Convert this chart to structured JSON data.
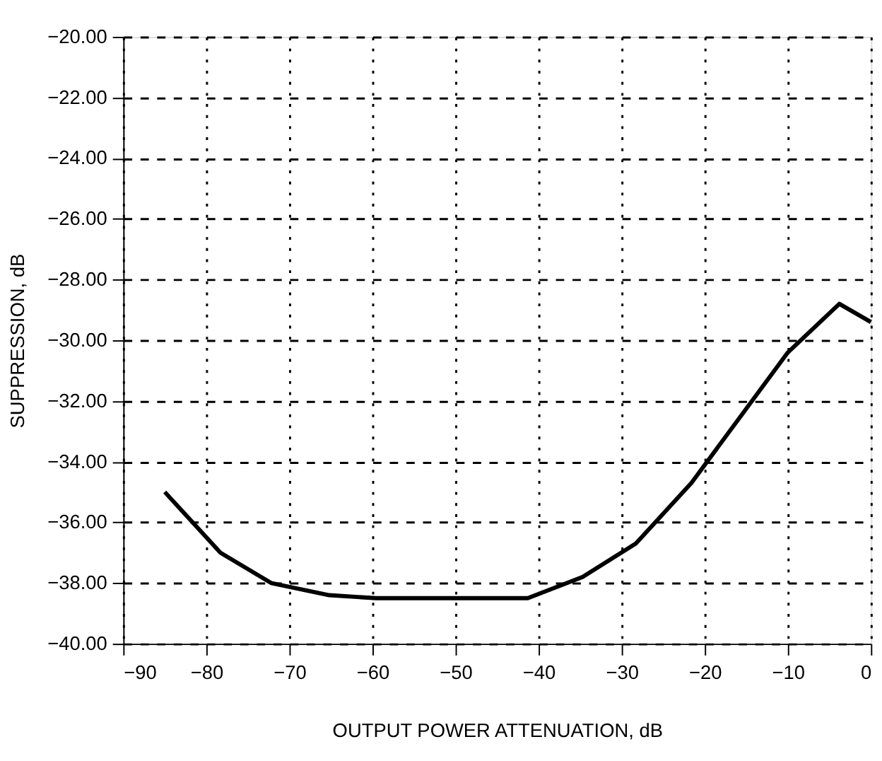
{
  "chart_data": {
    "type": "line",
    "xlabel": "OUTPUT POWER ATTENUATION, dB",
    "ylabel": "SUPPRESSION, dB",
    "x": [
      -85,
      -78.3,
      -72.2,
      -65.2,
      -59.6,
      -41.3,
      -34.7,
      -28.3,
      -21.6,
      -10,
      -3.8,
      0
    ],
    "series": [
      {
        "color": "#000000",
        "values": [
          -35.0,
          -37.0,
          -38.0,
          -38.4,
          -38.5,
          -38.5,
          -37.8,
          -36.7,
          -34.7,
          -30.4,
          -28.8,
          -29.4
        ]
      }
    ],
    "xlim": [
      -90,
      0
    ],
    "xticks": [
      -90,
      -80,
      -70,
      -60,
      -50,
      -40,
      -30,
      -20,
      -10,
      0
    ],
    "ylim": [
      -40,
      -20
    ],
    "yticks": [
      {
        "value": -40,
        "label": "−40.00"
      },
      {
        "value": -38,
        "label": "−38.00"
      },
      {
        "value": -36,
        "label": "−36.00"
      },
      {
        "value": -34,
        "label": "−34.00"
      },
      {
        "value": -32,
        "label": "−32.00"
      },
      {
        "value": -30,
        "label": "−30.00"
      },
      {
        "value": -28,
        "label": "−28.00"
      },
      {
        "value": -26,
        "label": "−26.00"
      },
      {
        "value": -24,
        "label": "−24.00"
      },
      {
        "value": -22,
        "label": "−22.00"
      },
      {
        "value": -20,
        "label": "−20.00"
      }
    ],
    "grid": true,
    "line_style": "solid",
    "marker": "none"
  }
}
